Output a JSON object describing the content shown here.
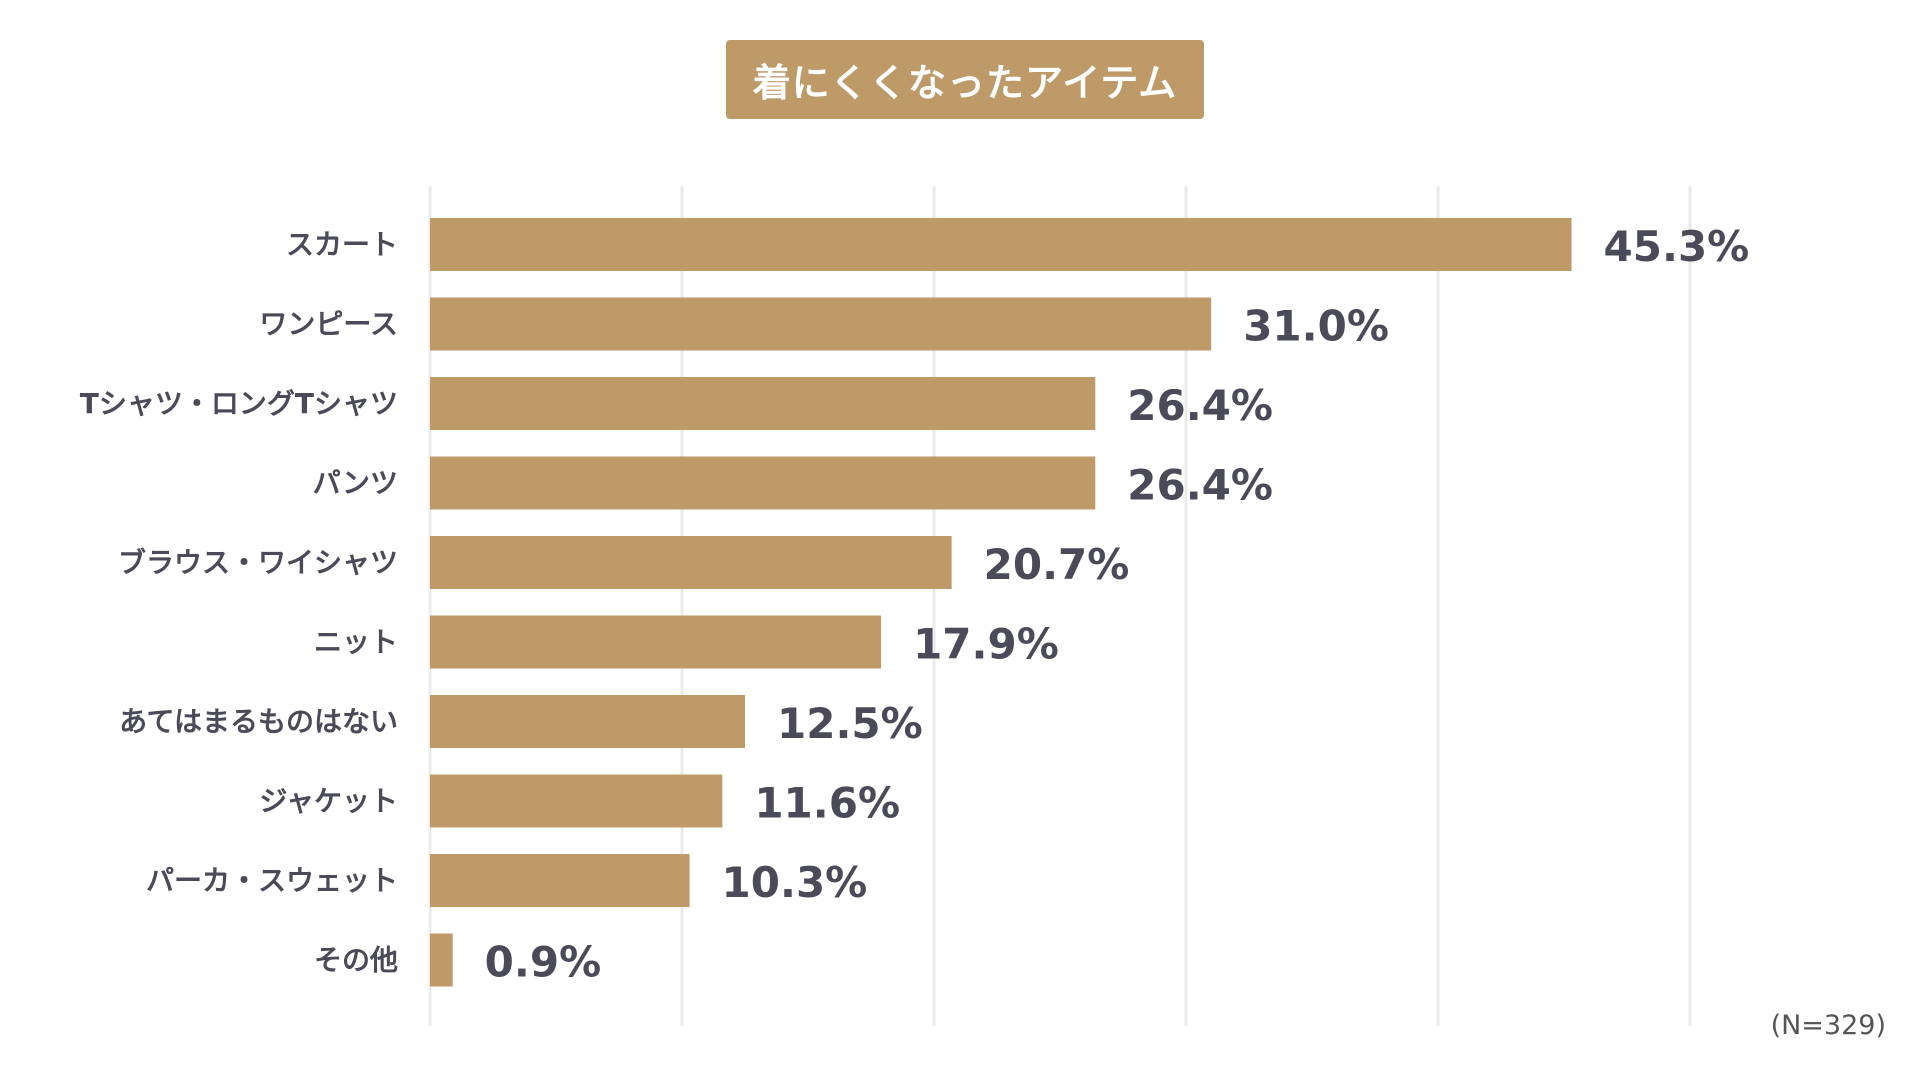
{
  "colors": {
    "bar": "#BE9A68",
    "title_bg": "#BE9A68",
    "title_text": "#FFFFFF",
    "label_text": "#4A4A58",
    "value_text": "#4A4A58",
    "grid": "#EBEBEB"
  },
  "note": "(N=329)",
  "chart_data": {
    "type": "bar",
    "orientation": "horizontal",
    "title": "着にくくなったアイテム",
    "categories": [
      "スカート",
      "ワンピース",
      "Tシャツ・ロングTシャツ",
      "パンツ",
      "ブラウス・ワイシャツ",
      "ニット",
      "あてはまるものはない",
      "ジャケット",
      "パーカ・スウェット",
      "その他"
    ],
    "values": [
      45.3,
      31.0,
      26.4,
      26.4,
      20.7,
      17.9,
      12.5,
      11.6,
      10.3,
      0.9
    ],
    "value_labels": [
      "45.3%",
      "31.0%",
      "26.4%",
      "26.4%",
      "20.7%",
      "17.9%",
      "12.5%",
      "11.6%",
      "10.3%",
      "0.9%"
    ],
    "xlim": [
      0,
      50
    ],
    "grid": true,
    "grid_step": 10,
    "axis_ticks_visible": false
  }
}
